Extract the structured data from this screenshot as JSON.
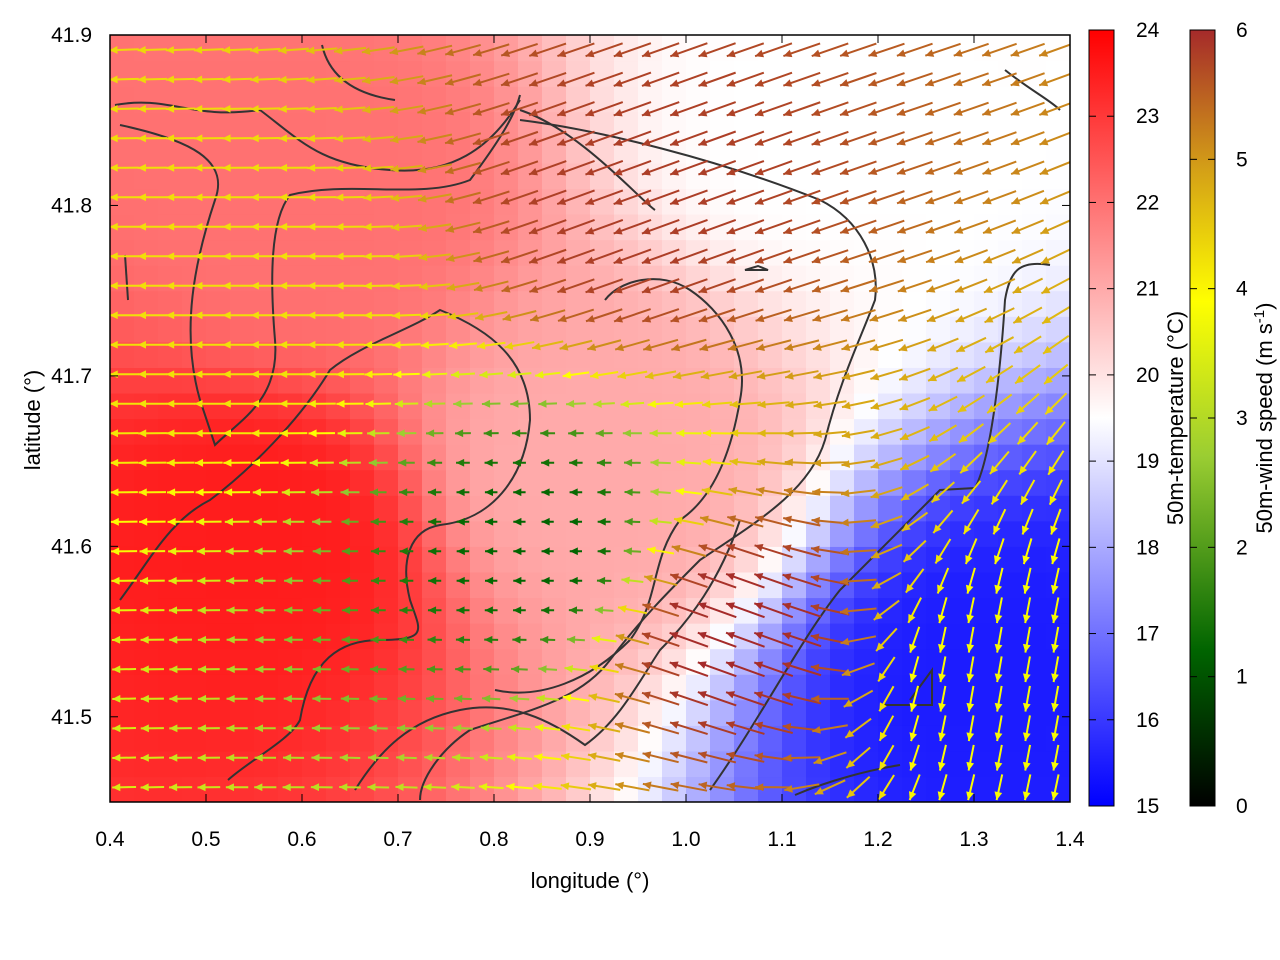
{
  "chart_data": {
    "type": "heatmap",
    "title": "",
    "xlabel": "longitude (°)",
    "ylabel": "latitude (°)",
    "xlim": [
      0.4,
      1.4
    ],
    "ylim": [
      41.45,
      41.9
    ],
    "x_ticks": [
      "0.4",
      "0.5",
      "0.6",
      "0.7",
      "0.8",
      "0.9",
      "1.0",
      "1.1",
      "1.2",
      "1.3",
      "1.4"
    ],
    "y_ticks": [
      "41.5",
      "41.6",
      "41.7",
      "41.8",
      "41.9"
    ],
    "grid": false,
    "field": {
      "name": "50m-temperature",
      "unit": "°C",
      "range": [
        15,
        24
      ],
      "colors": [
        "#0000ff",
        "#ffffff",
        "#ff0000"
      ],
      "regions": [
        {
          "desc": "warm west",
          "lon": 0.55,
          "lat": 41.6,
          "value": 23.5
        },
        {
          "desc": "warm centre-north",
          "lon": 0.6,
          "lat": 41.8,
          "value": 22
        },
        {
          "desc": "mild north-east",
          "lon": 1.15,
          "lat": 41.85,
          "value": 19.5
        },
        {
          "desc": "cool south-east",
          "lon": 1.33,
          "lat": 41.52,
          "value": 15.5
        },
        {
          "desc": "mild centre",
          "lon": 0.9,
          "lat": 41.65,
          "value": 21
        }
      ]
    },
    "vectors": {
      "name": "50m-wind speed",
      "unit": "m s-1",
      "range": [
        0,
        6
      ],
      "colors": [
        "#000000",
        "#006400",
        "#9acd32",
        "#ffff00",
        "#d4a017",
        "#a52a2a"
      ],
      "regions": [
        {
          "desc": "strong south-east flow",
          "lon": 1.05,
          "lat": 41.55,
          "speed": 6,
          "direction_deg": 200
        },
        {
          "desc": "strong north-central flow",
          "lon": 0.95,
          "lat": 41.8,
          "speed": 5.8,
          "direction_deg": 160
        },
        {
          "desc": "moderate western flow",
          "lon": 0.55,
          "lat": 41.75,
          "speed": 4,
          "direction_deg": 180
        },
        {
          "desc": "weak convergence zone",
          "lon": 0.85,
          "lat": 41.6,
          "speed": 1.2,
          "direction_deg": 180
        },
        {
          "desc": "light northerly flow in south-east",
          "lon": 1.33,
          "lat": 41.52,
          "speed": 3.5,
          "direction_deg": 100
        }
      ]
    },
    "colorbars": [
      {
        "name": "temperature",
        "label": "50m-temperature (°C)",
        "ticks": [
          "15",
          "16",
          "17",
          "18",
          "19",
          "20",
          "21",
          "22",
          "23",
          "24"
        ]
      },
      {
        "name": "wind",
        "label_main": "50m-wind speed (m s",
        "label_sup": "-1",
        "label_end": ")",
        "ticks": [
          "0",
          "1",
          "2",
          "3",
          "4",
          "5",
          "6"
        ]
      }
    ]
  }
}
